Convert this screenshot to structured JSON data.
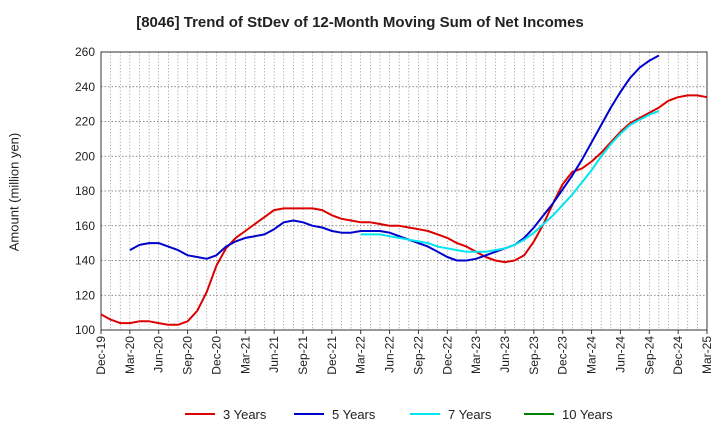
{
  "chart_data": {
    "type": "line",
    "title": "[8046]  Trend of StDev of 12-Month Moving Sum of Net Incomes",
    "xlabel": "",
    "ylabel": "Amount (million yen)",
    "ylim": [
      100,
      260
    ],
    "yticks": [
      100,
      120,
      140,
      160,
      180,
      200,
      220,
      240,
      260
    ],
    "xticks": [
      "Dec-19",
      "Mar-20",
      "Jun-20",
      "Sep-20",
      "Dec-20",
      "Mar-21",
      "Jun-21",
      "Sep-21",
      "Dec-21",
      "Mar-22",
      "Jun-22",
      "Sep-22",
      "Dec-22",
      "Mar-23",
      "Jun-23",
      "Sep-23",
      "Dec-23",
      "Mar-24",
      "Jun-24",
      "Sep-24",
      "Dec-24",
      "Mar-25"
    ],
    "x_start": "Dec-19",
    "grid": true,
    "legend_position": "bottom",
    "series": [
      {
        "name": "3 Years",
        "color": "#dd0000",
        "start": "Dec-19",
        "values": [
          109,
          106,
          104,
          104,
          105,
          105,
          104,
          103,
          103,
          105,
          111,
          122,
          137,
          147,
          153,
          157,
          161,
          165,
          169,
          170,
          170,
          170,
          170,
          169,
          166,
          164,
          163,
          162,
          162,
          161,
          160,
          160,
          159,
          158,
          157,
          155,
          153,
          150,
          148,
          145,
          142,
          140,
          139,
          140,
          143,
          151,
          161,
          173,
          184,
          191,
          193,
          197,
          202,
          208,
          214,
          219,
          222,
          225,
          228,
          232,
          234,
          235,
          235,
          234
        ]
      },
      {
        "name": "5 Years",
        "color": "#0000cc",
        "start": "Mar-20",
        "values": [
          146,
          149,
          150,
          150,
          148,
          146,
          143,
          142,
          141,
          143,
          148,
          151,
          153,
          154,
          155,
          158,
          162,
          163,
          162,
          160,
          159,
          157,
          156,
          156,
          157,
          157,
          157,
          156,
          154,
          152,
          150,
          148,
          145,
          142,
          140,
          140,
          141,
          143,
          145,
          147,
          149,
          153,
          159,
          166,
          173,
          181,
          189,
          198,
          208,
          218,
          228,
          237,
          245,
          251,
          255,
          258
        ]
      },
      {
        "name": "7 Years",
        "color": "#00e5ee",
        "start": "Mar-22",
        "values": [
          155,
          155,
          155,
          154,
          153,
          152,
          151,
          150,
          148,
          147,
          146,
          145,
          145,
          145,
          146,
          147,
          149,
          152,
          156,
          161,
          166,
          172,
          178,
          185,
          192,
          200,
          207,
          213,
          218,
          221,
          224,
          226
        ]
      },
      {
        "name": "10 Years",
        "color": "#008000",
        "start": "Dec-24",
        "values": []
      }
    ]
  }
}
